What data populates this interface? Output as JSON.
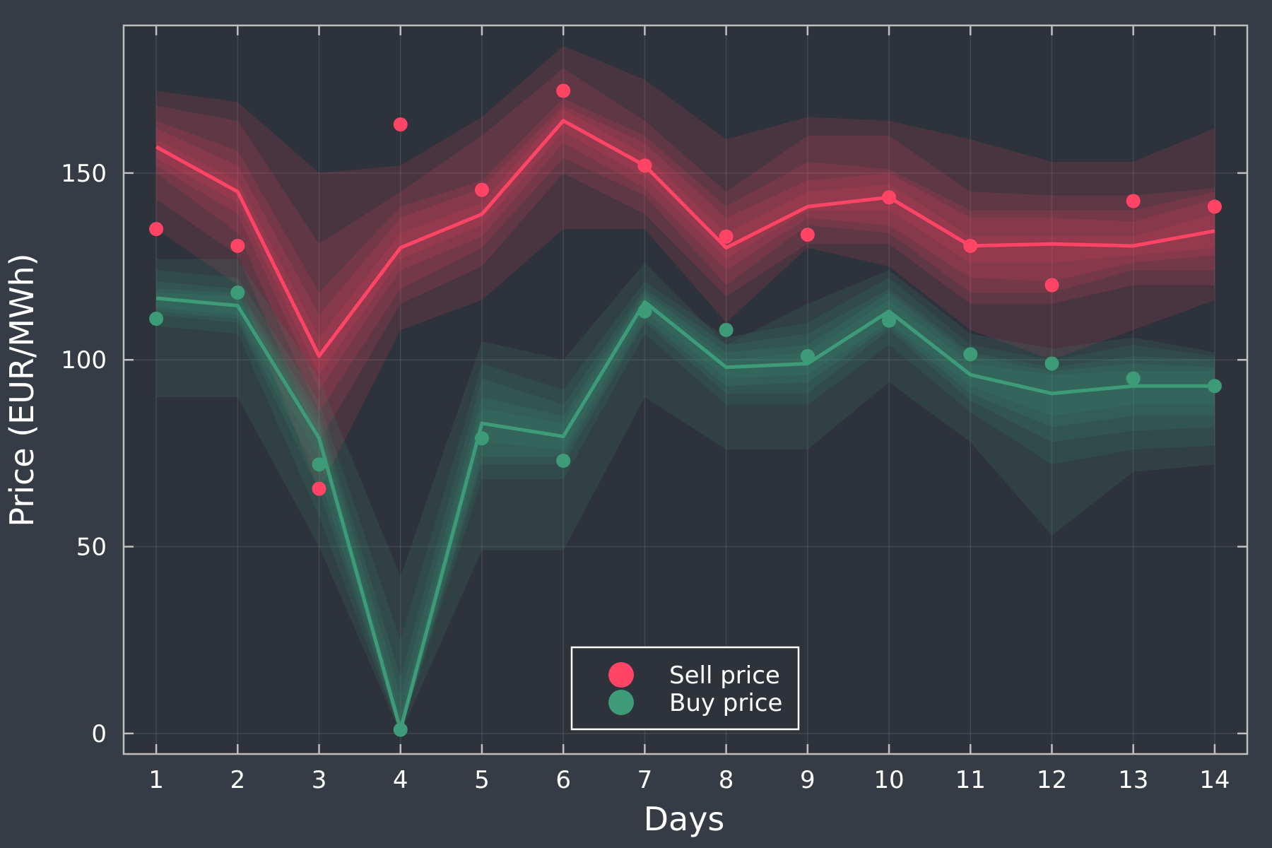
{
  "chart_data": {
    "type": "line",
    "title": "",
    "xlabel": "Days",
    "ylabel": "Price (EUR/MWh)",
    "x": [
      1,
      2,
      3,
      4,
      5,
      6,
      7,
      8,
      9,
      10,
      11,
      12,
      13,
      14
    ],
    "x_ticks": [
      "1",
      "2",
      "3",
      "4",
      "5",
      "6",
      "7",
      "8",
      "9",
      "10",
      "11",
      "12",
      "13",
      "14"
    ],
    "y_ticks": [
      0,
      50,
      100,
      150
    ],
    "y_tick_labels": [
      "0",
      "50",
      "100",
      "150"
    ],
    "xlim": [
      0.6,
      14.4
    ],
    "ylim": [
      -5.5,
      189.5
    ],
    "grid": true,
    "legend_position": "bottom-center",
    "series": [
      {
        "name": "Sell price",
        "color": "#ff4466",
        "line": [
          157,
          145,
          101,
          130,
          139,
          164,
          152,
          130,
          141,
          143.5,
          130.5,
          131,
          130.5,
          134.5
        ],
        "points": [
          135,
          130.5,
          65.5,
          163,
          145.5,
          172,
          152,
          133,
          133.5,
          143.5,
          130.5,
          120,
          142.5,
          141
        ],
        "bands": [
          {
            "lower": [
              135,
              120,
              65,
              108,
              116,
              135,
              135,
              110,
              130,
              125,
              108,
              100,
              108,
              116
            ],
            "upper": [
              172,
              169,
              150,
              152,
              165,
              184,
              175,
              159,
              165,
              164,
              159,
              153,
              153,
              162
            ]
          },
          {
            "lower": [
              143,
              128,
              78,
              115,
              125,
              150,
              139,
              117,
              131,
              131,
              115,
              115,
              120,
              120
            ],
            "upper": [
              168,
              164,
              131,
              145,
              160,
              178,
              164,
              145,
              160,
              160,
              145,
              144,
              144,
              146
            ]
          },
          {
            "lower": [
              150,
              134,
              86,
              119,
              130,
              154,
              144,
              120,
              136,
              134,
              118,
              118,
              124,
              124
            ],
            "upper": [
              164,
              156,
              118,
              141,
              148,
              170,
              160,
              141,
              153,
              151,
              140,
              140,
              140,
              145
            ]
          },
          {
            "lower": [
              152,
              139,
              92,
              124,
              133,
              158,
              146,
              124,
              138,
              136,
              122,
              121,
              126,
              128
            ],
            "upper": [
              162,
              152,
              112,
              138,
              146,
              168,
              158,
              138,
              148,
              150,
              138,
              138,
              137,
              143
            ]
          },
          {
            "lower": [
              154,
              142,
              96,
              127,
              136,
              161,
              149,
              127,
              140,
              140,
              126,
              126,
              128,
              130
            ],
            "upper": [
              159,
              148,
              106,
              134,
              142,
              167,
              155,
              134,
              145,
              147,
              133,
              133,
              133,
              139
            ]
          }
        ]
      },
      {
        "name": "Buy price",
        "color": "#3d9b7a",
        "line": [
          116.5,
          114.5,
          79,
          1,
          83,
          79.5,
          115.5,
          98,
          99,
          113,
          96,
          91,
          93,
          93
        ],
        "points": [
          111,
          118,
          72,
          1,
          79,
          73,
          113,
          108,
          101,
          110.5,
          101.5,
          99,
          95,
          93
        ],
        "bands": [
          {
            "lower": [
              90,
              90,
              50,
              0,
              49,
              49,
              90,
              76,
              76,
              94,
              78,
              53,
              70,
              72
            ],
            "upper": [
              127,
              127,
              95,
              42,
              105,
              100,
              126,
              104,
              115,
              124,
              107,
              103,
              106,
              102
            ]
          },
          {
            "lower": [
              109,
              107,
              58,
              0,
              68,
              68,
              107,
              88,
              88,
              104,
              86,
              72,
              76,
              77
            ],
            "upper": [
              124,
              122,
              89,
              25,
              99,
              92,
              121,
              106,
              110,
              122,
              104,
              100,
              104,
              101
            ]
          },
          {
            "lower": [
              112,
              110,
              65,
              0,
              72,
              72,
              110,
              91,
              91,
              108,
              89,
              78,
              81,
              82
            ],
            "upper": [
              121,
              119,
              86,
              15,
              95,
              88,
              119,
              104,
              107,
              119,
              102,
              98,
              101,
              100
            ]
          },
          {
            "lower": [
              113,
              111,
              69,
              0,
              74,
              74,
              111,
              93,
              94,
              109,
              91,
              82,
              85,
              85
            ],
            "upper": [
              119,
              118,
              84,
              10,
              90,
              85,
              118,
              102,
              104,
              118,
              101,
              97,
              99,
              98
            ]
          },
          {
            "lower": [
              114,
              112,
              74,
              0,
              78,
              76,
              113,
              95,
              96,
              110,
              93,
              85,
              88,
              88
            ],
            "upper": [
              118,
              117,
              82,
              5,
              87,
              83,
              117,
              100,
              102,
              116,
              99,
              96,
              97,
              97
            ]
          }
        ]
      }
    ]
  }
}
